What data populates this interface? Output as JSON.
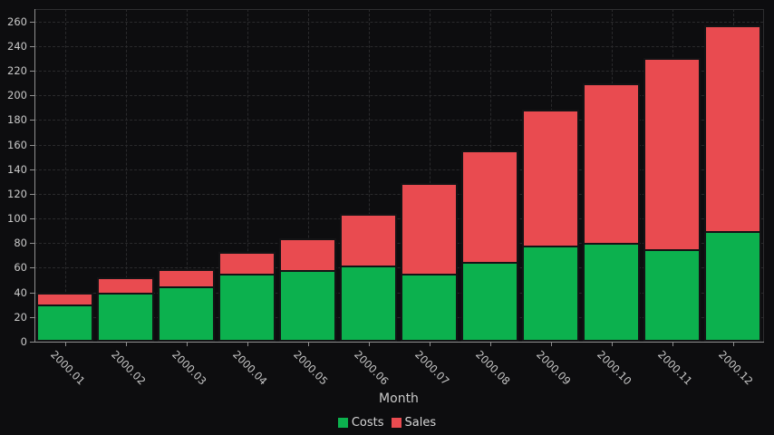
{
  "chart_data": {
    "type": "bar",
    "stacked": true,
    "title": "",
    "xlabel": "Month",
    "ylabel": "",
    "categories": [
      "2000.01",
      "2000.02",
      "2000.03",
      "2000.04",
      "2000.05",
      "2000.06",
      "2000.07",
      "2000.08",
      "2000.09",
      "2000.10",
      "2000.11",
      "2000.12"
    ],
    "series": [
      {
        "name": "Costs",
        "color": "#0cb14e",
        "values": [
          30,
          40,
          45,
          55,
          58,
          62,
          55,
          65,
          78,
          80,
          75,
          90
        ]
      },
      {
        "name": "Sales",
        "color": "#e94b50",
        "values": [
          10,
          12,
          14,
          18,
          26,
          42,
          74,
          90,
          110,
          130,
          155,
          167
        ]
      }
    ],
    "stacked_totals": [
      40,
      52,
      59,
      73,
      84,
      104,
      129,
      155,
      188,
      210,
      230,
      257
    ],
    "y_axis": {
      "min": 0,
      "max": 270,
      "tick_step": 20,
      "tick_labels": [
        "0",
        "20",
        "40",
        "60",
        "80",
        "100",
        "120",
        "140",
        "160",
        "180",
        "200",
        "220",
        "240",
        "260"
      ]
    },
    "grid": {
      "horizontal": true,
      "vertical": true,
      "style": "dashed"
    },
    "legend_position": "bottom",
    "x_tick_rotation_deg": 45
  },
  "colors": {
    "background": "#0d0d0f",
    "axis_line": "#8f8f8f",
    "frame_line": "#2e2e30",
    "grid_line": "#2a2a2c",
    "tick_label": "#c9c9c9",
    "axis_title": "#c9c9c9",
    "legend_text": "#d6d6d6",
    "bar_border": "#131315",
    "costs_green": "#0cb14e",
    "sales_red": "#e94b50"
  }
}
